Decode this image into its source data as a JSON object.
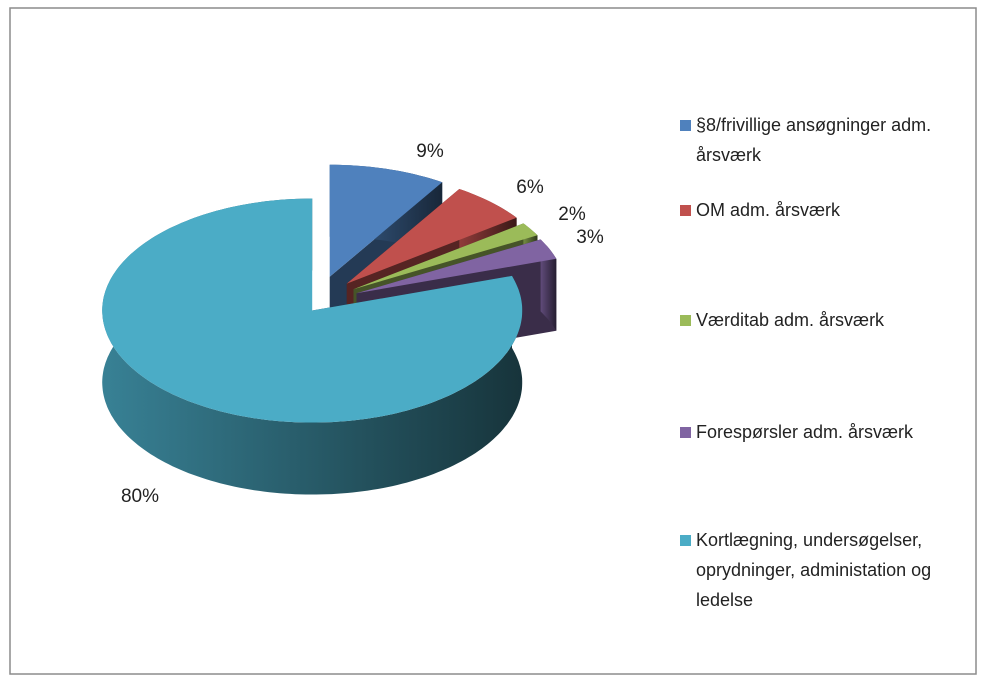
{
  "chart_data": {
    "type": "pie",
    "categories": [
      "§8/frivillige ansøgninger adm. årsværk",
      "OM adm. årsværk",
      "Værditab adm. årsværk",
      "Forespørsler adm. årsværk",
      "Kortlægning, undersøgelser, oprydninger, administation og ledelse"
    ],
    "values": [
      9,
      6,
      2,
      3,
      80
    ],
    "value_labels": [
      "9%",
      "6%",
      "2%",
      "3%",
      "80%"
    ],
    "colors": [
      "#4f81bd",
      "#c0504d",
      "#9bbb59",
      "#8064a2",
      "#4bacc6"
    ],
    "legend": "right"
  }
}
